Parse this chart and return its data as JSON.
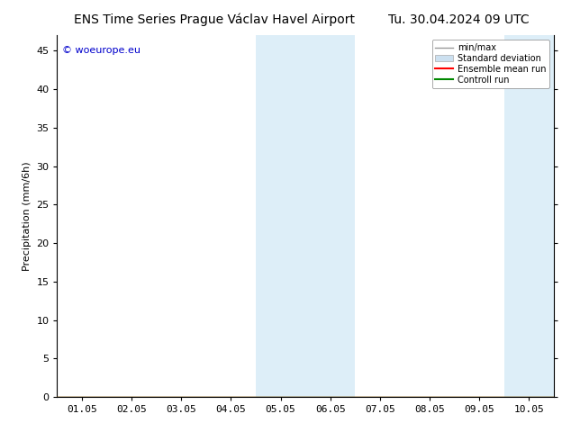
{
  "title_left": "ENS Time Series Prague Václav Havel Airport",
  "title_right": "Tu. 30.04.2024 09 UTC",
  "ylabel": "Precipitation (mm/6h)",
  "watermark": "© woeurope.eu",
  "x_tick_labels": [
    "01.05",
    "02.05",
    "03.05",
    "04.05",
    "05.05",
    "06.05",
    "07.05",
    "08.05",
    "09.05",
    "10.05"
  ],
  "x_tick_positions": [
    0,
    1,
    2,
    3,
    4,
    5,
    6,
    7,
    8,
    9
  ],
  "xlim": [
    -0.5,
    9.5
  ],
  "ylim": [
    0,
    47
  ],
  "yticks": [
    0,
    5,
    10,
    15,
    20,
    25,
    30,
    35,
    40,
    45
  ],
  "shaded_bands": [
    {
      "x_start": 3.5,
      "x_end": 4.5,
      "color": "#ddeef8"
    },
    {
      "x_start": 4.5,
      "x_end": 5.5,
      "color": "#ddeef8"
    },
    {
      "x_start": 8.5,
      "x_end": 9.5,
      "color": "#ddeef8"
    }
  ],
  "bg_color": "#ffffff",
  "plot_bg_color": "#ffffff",
  "legend_items": [
    {
      "label": "min/max",
      "color": "#aaaaaa",
      "lw": 1.0
    },
    {
      "label": "Standard deviation",
      "color": "#ccdde8",
      "lw": 8
    },
    {
      "label": "Ensemble mean run",
      "color": "#ff0000",
      "lw": 1.5
    },
    {
      "label": "Controll run",
      "color": "#008800",
      "lw": 1.5
    }
  ],
  "font_size_title": 10,
  "font_size_axis": 8,
  "font_size_legend": 7,
  "font_size_watermark": 8,
  "watermark_color": "#0000cc"
}
